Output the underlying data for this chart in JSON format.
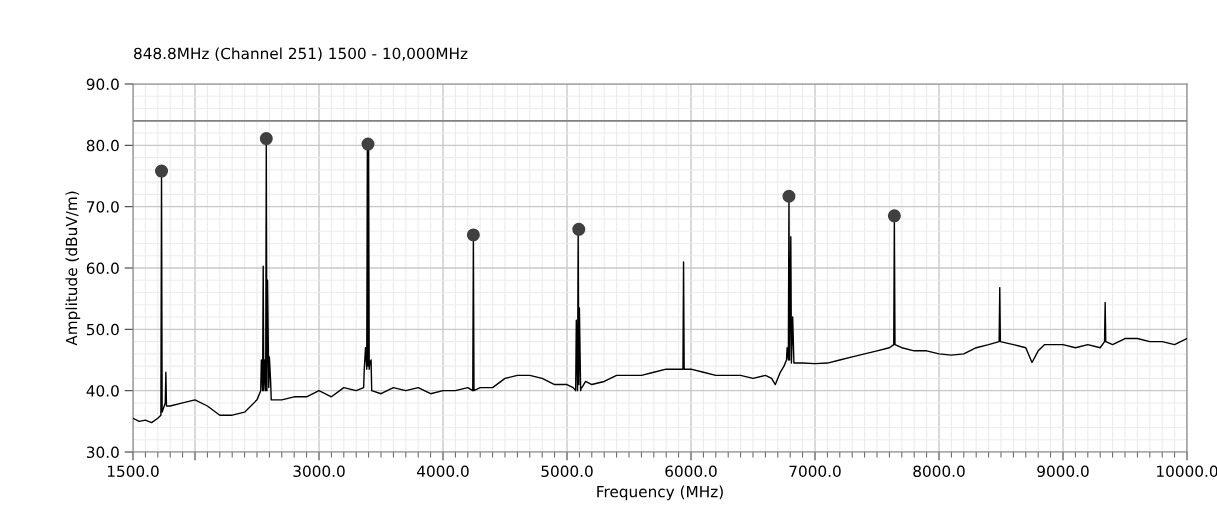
{
  "chart_data": {
    "type": "line",
    "title": "848.8MHz (Channel 251) 1500 - 10,000MHz",
    "xlabel": "Frequency (MHz)",
    "ylabel": "Amplitude (dBuV/m)",
    "xlim": [
      1500,
      10000
    ],
    "ylim": [
      30,
      90
    ],
    "xticks": [
      {
        "value": 1500,
        "label": "1500.0"
      },
      {
        "value": 2000,
        "label": null
      },
      {
        "value": 3000,
        "label": "3000.0"
      },
      {
        "value": 4000,
        "label": "4000.0"
      },
      {
        "value": 5000,
        "label": "5000.0"
      },
      {
        "value": 6000,
        "label": "6000.0"
      },
      {
        "value": 7000,
        "label": "7000.0"
      },
      {
        "value": 8000,
        "label": "8000.0"
      },
      {
        "value": 9000,
        "label": "9000.0"
      },
      {
        "value": 10000,
        "label": "10000.0"
      }
    ],
    "yticks": [
      {
        "value": 30,
        "label": "30.0"
      },
      {
        "value": 40,
        "label": "40.0"
      },
      {
        "value": 50,
        "label": "50.0"
      },
      {
        "value": 60,
        "label": "60.0"
      },
      {
        "value": 70,
        "label": "70.0"
      },
      {
        "value": 80,
        "label": "80.0"
      },
      {
        "value": 90,
        "label": "90.0"
      }
    ],
    "grid": true,
    "ref_lines": [
      {
        "axis": "y",
        "value": 84,
        "color": "#808080"
      }
    ],
    "series": [
      {
        "color": "#000000",
        "marker": "none",
        "x": [
          1500,
          1550,
          1600,
          1650,
          1700,
          1725,
          1730,
          1735,
          1760,
          1765,
          1770,
          1800,
          1900,
          2000,
          2100,
          2200,
          2300,
          2400,
          2500,
          2530,
          2535,
          2545,
          2550,
          2555,
          2560,
          2570,
          2575,
          2580,
          2585,
          2595,
          2600,
          2610,
          2615,
          2700,
          2800,
          2900,
          3000,
          3100,
          3200,
          3300,
          3360,
          3365,
          3375,
          3385,
          3390,
          3395,
          3400,
          3405,
          3410,
          3420,
          3425,
          3500,
          3600,
          3700,
          3800,
          3900,
          4000,
          4100,
          4200,
          4240,
          4245,
          4250,
          4300,
          4400,
          4500,
          4600,
          4700,
          4800,
          4900,
          5000,
          5050,
          5070,
          5075,
          5085,
          5090,
          5095,
          5100,
          5110,
          5115,
          5120,
          5150,
          5200,
          5300,
          5400,
          5500,
          5600,
          5700,
          5800,
          5900,
          5935,
          5940,
          5945,
          6000,
          6100,
          6200,
          6300,
          6400,
          6500,
          6600,
          6650,
          6680,
          6720,
          6750,
          6770,
          6775,
          6785,
          6790,
          6795,
          6805,
          6810,
          6820,
          6830,
          6900,
          7000,
          7100,
          7200,
          7300,
          7400,
          7500,
          7600,
          7635,
          7640,
          7645,
          7700,
          7800,
          7900,
          8000,
          8100,
          8200,
          8300,
          8400,
          8485,
          8490,
          8495,
          8600,
          8700,
          8750,
          8800,
          8850,
          8900,
          9000,
          9100,
          9200,
          9300,
          9335,
          9340,
          9345,
          9400,
          9500,
          9600,
          9700,
          9800,
          9900,
          10000
        ],
        "values": [
          35.5,
          35.0,
          35.2,
          34.8,
          35.5,
          36.0,
          75.8,
          36.5,
          38.0,
          43.0,
          37.5,
          37.5,
          38.0,
          38.5,
          37.5,
          36.0,
          36.0,
          36.5,
          38.5,
          40.0,
          45.0,
          40.0,
          60.3,
          40.0,
          45.0,
          40.0,
          81.1,
          40.0,
          58.0,
          40.5,
          45.5,
          41.5,
          38.5,
          38.5,
          39.0,
          39.0,
          40.0,
          39.0,
          40.5,
          40.0,
          40.5,
          43.5,
          47.0,
          43.5,
          80.2,
          44.0,
          80.2,
          43.5,
          44.5,
          45.0,
          40.0,
          39.5,
          40.5,
          40.0,
          40.5,
          39.5,
          40.0,
          40.0,
          40.5,
          40.0,
          65.4,
          40.0,
          40.5,
          40.5,
          42.0,
          42.5,
          42.5,
          42.0,
          41.0,
          41.0,
          40.5,
          40.0,
          51.5,
          40.0,
          66.3,
          41.0,
          53.5,
          40.0,
          40.5,
          40.5,
          41.5,
          41.0,
          41.5,
          42.5,
          42.5,
          42.5,
          43.0,
          43.5,
          43.5,
          43.5,
          61.0,
          43.5,
          43.5,
          43.0,
          42.5,
          42.5,
          42.5,
          42.0,
          42.5,
          42.0,
          41.0,
          43.0,
          44.0,
          45.0,
          47.0,
          45.0,
          71.7,
          45.0,
          65.1,
          44.5,
          52.0,
          44.5,
          44.5,
          44.4,
          44.5,
          45.0,
          45.5,
          46.0,
          46.5,
          47.0,
          47.5,
          68.5,
          47.5,
          47.0,
          46.5,
          46.5,
          46.0,
          45.8,
          46.0,
          47.0,
          47.5,
          48.0,
          56.8,
          48.0,
          47.5,
          47.0,
          44.6,
          46.5,
          47.5,
          47.5,
          47.5,
          47.0,
          47.5,
          47.0,
          48.0,
          54.4,
          48.0,
          47.5,
          48.5,
          48.5,
          48.0,
          48.0,
          47.5,
          48.5
        ]
      },
      {
        "type": "scatter",
        "color": "#404040",
        "marker": "circle",
        "x": [
          1730,
          2575,
          3395,
          4245,
          5095,
          6790,
          7640
        ],
        "values": [
          75.8,
          81.1,
          80.2,
          65.4,
          66.3,
          71.7,
          68.5
        ]
      }
    ]
  }
}
